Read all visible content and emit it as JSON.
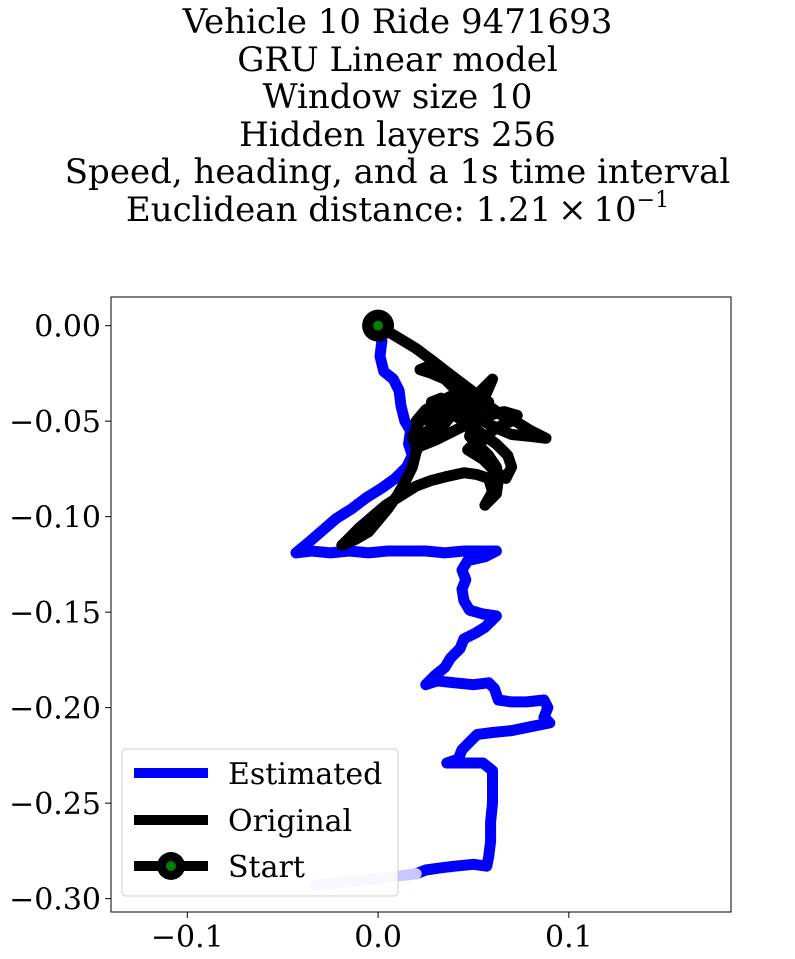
{
  "chart_data": {
    "type": "line",
    "title_lines": [
      "Vehicle 10 Ride 9471693",
      "GRU Linear model",
      "Window size 10",
      "Hidden layers 256",
      "Speed, heading, and a 1s time interval"
    ],
    "title_metric_prefix": "Euclidean distance: 1.21 × 10",
    "title_metric_exponent": "−1",
    "xlim": [
      -0.14,
      0.185
    ],
    "ylim": [
      -0.307,
      0.015
    ],
    "xticks": [
      -0.1,
      0.0,
      0.1
    ],
    "xtick_labels": [
      "−0.1",
      "0.0",
      "0.1"
    ],
    "yticks": [
      0.0,
      -0.05,
      -0.1,
      -0.15,
      -0.2,
      -0.25,
      -0.3
    ],
    "ytick_labels": [
      "0.00",
      "−0.05",
      "−0.10",
      "−0.15",
      "−0.20",
      "−0.25",
      "−0.30"
    ],
    "grid": false,
    "legend_position": "lower-left",
    "series": [
      {
        "name": "Estimated",
        "color": "#0000ff",
        "points": [
          [
            0.0,
            0.0
          ],
          [
            0.002,
            -0.008
          ],
          [
            0.001,
            -0.016
          ],
          [
            0.003,
            -0.024
          ],
          [
            0.008,
            -0.028
          ],
          [
            0.011,
            -0.034
          ],
          [
            0.012,
            -0.042
          ],
          [
            0.014,
            -0.05
          ],
          [
            0.017,
            -0.055
          ],
          [
            0.016,
            -0.062
          ],
          [
            0.018,
            -0.068
          ],
          [
            0.015,
            -0.074
          ],
          [
            0.009,
            -0.08
          ],
          [
            0.002,
            -0.085
          ],
          [
            -0.006,
            -0.09
          ],
          [
            -0.014,
            -0.096
          ],
          [
            -0.022,
            -0.101
          ],
          [
            -0.03,
            -0.108
          ],
          [
            -0.037,
            -0.114
          ],
          [
            -0.043,
            -0.119
          ],
          [
            -0.035,
            -0.118
          ],
          [
            -0.025,
            -0.119
          ],
          [
            -0.015,
            -0.118
          ],
          [
            -0.005,
            -0.119
          ],
          [
            0.005,
            -0.118
          ],
          [
            0.015,
            -0.118
          ],
          [
            0.025,
            -0.118
          ],
          [
            0.035,
            -0.119
          ],
          [
            0.045,
            -0.118
          ],
          [
            0.055,
            -0.118
          ],
          [
            0.062,
            -0.118
          ],
          [
            0.056,
            -0.121
          ],
          [
            0.047,
            -0.123
          ],
          [
            0.044,
            -0.128
          ],
          [
            0.046,
            -0.133
          ],
          [
            0.044,
            -0.138
          ],
          [
            0.045,
            -0.144
          ],
          [
            0.048,
            -0.149
          ],
          [
            0.055,
            -0.151
          ],
          [
            0.062,
            -0.152
          ],
          [
            0.056,
            -0.158
          ],
          [
            0.051,
            -0.161
          ],
          [
            0.045,
            -0.164
          ],
          [
            0.043,
            -0.169
          ],
          [
            0.038,
            -0.174
          ],
          [
            0.035,
            -0.179
          ],
          [
            0.03,
            -0.183
          ],
          [
            0.025,
            -0.188
          ],
          [
            0.031,
            -0.186
          ],
          [
            0.04,
            -0.187
          ],
          [
            0.05,
            -0.188
          ],
          [
            0.058,
            -0.187
          ],
          [
            0.061,
            -0.19
          ],
          [
            0.063,
            -0.196
          ],
          [
            0.07,
            -0.197
          ],
          [
            0.078,
            -0.197
          ],
          [
            0.087,
            -0.196
          ],
          [
            0.089,
            -0.2
          ],
          [
            0.087,
            -0.205
          ],
          [
            0.09,
            -0.208
          ],
          [
            0.08,
            -0.21
          ],
          [
            0.07,
            -0.212
          ],
          [
            0.06,
            -0.213
          ],
          [
            0.052,
            -0.214
          ],
          [
            0.048,
            -0.218
          ],
          [
            0.044,
            -0.222
          ],
          [
            0.042,
            -0.227
          ],
          [
            0.036,
            -0.229
          ],
          [
            0.045,
            -0.229
          ],
          [
            0.055,
            -0.229
          ],
          [
            0.06,
            -0.233
          ],
          [
            0.06,
            -0.24
          ],
          [
            0.06,
            -0.25
          ],
          [
            0.059,
            -0.26
          ],
          [
            0.059,
            -0.27
          ],
          [
            0.058,
            -0.278
          ],
          [
            0.057,
            -0.283
          ],
          [
            0.05,
            -0.282
          ],
          [
            0.04,
            -0.283
          ],
          [
            0.032,
            -0.284
          ],
          [
            0.025,
            -0.285
          ],
          [
            0.02,
            -0.287
          ],
          [
            0.012,
            -0.288
          ],
          [
            0.004,
            -0.289
          ],
          [
            -0.005,
            -0.29
          ],
          [
            -0.015,
            -0.291
          ],
          [
            -0.025,
            -0.292
          ],
          [
            -0.033,
            -0.293
          ]
        ]
      },
      {
        "name": "Original",
        "color": "#000000",
        "points": [
          [
            0.0,
            0.0
          ],
          [
            0.01,
            -0.006
          ],
          [
            0.02,
            -0.012
          ],
          [
            0.028,
            -0.018
          ],
          [
            0.037,
            -0.025
          ],
          [
            0.045,
            -0.031
          ],
          [
            0.053,
            -0.037
          ],
          [
            0.058,
            -0.04
          ],
          [
            0.05,
            -0.045
          ],
          [
            0.04,
            -0.046
          ],
          [
            0.03,
            -0.047
          ],
          [
            0.022,
            -0.05
          ],
          [
            0.018,
            -0.058
          ],
          [
            0.02,
            -0.064
          ],
          [
            0.03,
            -0.06
          ],
          [
            0.04,
            -0.055
          ],
          [
            0.05,
            -0.05
          ],
          [
            0.058,
            -0.047
          ],
          [
            0.066,
            -0.045
          ],
          [
            0.073,
            -0.047
          ],
          [
            0.07,
            -0.05
          ],
          [
            0.065,
            -0.052
          ],
          [
            0.06,
            -0.055
          ],
          [
            0.055,
            -0.06
          ],
          [
            0.05,
            -0.062
          ],
          [
            0.047,
            -0.065
          ],
          [
            0.055,
            -0.07
          ],
          [
            0.06,
            -0.075
          ],
          [
            0.067,
            -0.08
          ],
          [
            0.07,
            -0.074
          ],
          [
            0.068,
            -0.068
          ],
          [
            0.062,
            -0.062
          ],
          [
            0.055,
            -0.057
          ],
          [
            0.048,
            -0.052
          ],
          [
            0.04,
            -0.047
          ],
          [
            0.033,
            -0.044
          ],
          [
            0.028,
            -0.04
          ],
          [
            0.033,
            -0.038
          ],
          [
            0.04,
            -0.042
          ],
          [
            0.048,
            -0.047
          ],
          [
            0.055,
            -0.05
          ],
          [
            0.063,
            -0.054
          ],
          [
            0.07,
            -0.057
          ],
          [
            0.08,
            -0.058
          ],
          [
            0.088,
            -0.059
          ],
          [
            0.08,
            -0.055
          ],
          [
            0.072,
            -0.05
          ],
          [
            0.065,
            -0.047
          ],
          [
            0.058,
            -0.042
          ],
          [
            0.052,
            -0.037
          ],
          [
            0.045,
            -0.035
          ],
          [
            0.038,
            -0.037
          ],
          [
            0.032,
            -0.04
          ],
          [
            0.025,
            -0.044
          ],
          [
            0.02,
            -0.05
          ],
          [
            0.022,
            -0.057
          ],
          [
            0.028,
            -0.06
          ],
          [
            0.032,
            -0.055
          ],
          [
            0.036,
            -0.05
          ],
          [
            0.04,
            -0.045
          ],
          [
            0.045,
            -0.042
          ],
          [
            0.05,
            -0.038
          ],
          [
            0.055,
            -0.033
          ],
          [
            0.06,
            -0.028
          ],
          [
            0.057,
            -0.035
          ],
          [
            0.053,
            -0.042
          ],
          [
            0.05,
            -0.05
          ],
          [
            0.048,
            -0.058
          ],
          [
            0.053,
            -0.063
          ],
          [
            0.058,
            -0.068
          ],
          [
            0.062,
            -0.074
          ],
          [
            0.063,
            -0.081
          ],
          [
            0.062,
            -0.088
          ],
          [
            0.056,
            -0.094
          ],
          [
            0.06,
            -0.087
          ],
          [
            0.058,
            -0.08
          ],
          [
            0.052,
            -0.078
          ],
          [
            0.045,
            -0.077
          ],
          [
            0.036,
            -0.079
          ],
          [
            0.028,
            -0.081
          ],
          [
            0.02,
            -0.084
          ],
          [
            0.012,
            -0.089
          ],
          [
            0.004,
            -0.094
          ],
          [
            -0.003,
            -0.1
          ],
          [
            -0.01,
            -0.106
          ],
          [
            -0.016,
            -0.112
          ],
          [
            -0.019,
            -0.115
          ],
          [
            -0.012,
            -0.112
          ],
          [
            -0.005,
            -0.108
          ],
          [
            0.0,
            -0.102
          ],
          [
            0.005,
            -0.096
          ],
          [
            0.01,
            -0.089
          ],
          [
            0.014,
            -0.082
          ],
          [
            0.018,
            -0.074
          ],
          [
            0.02,
            -0.066
          ],
          [
            0.024,
            -0.058
          ],
          [
            0.03,
            -0.05
          ],
          [
            0.036,
            -0.044
          ],
          [
            0.04,
            -0.04
          ],
          [
            0.046,
            -0.036
          ],
          [
            0.042,
            -0.032
          ],
          [
            0.035,
            -0.028
          ],
          [
            0.028,
            -0.025
          ],
          [
            0.022,
            -0.023
          ],
          [
            0.027,
            -0.021
          ],
          [
            0.032,
            -0.025
          ],
          [
            0.037,
            -0.03
          ],
          [
            0.042,
            -0.035
          ],
          [
            0.047,
            -0.039
          ],
          [
            0.052,
            -0.043
          ]
        ]
      },
      {
        "name": "Start",
        "color": "#008000",
        "points": [
          [
            0.0,
            0.0
          ]
        ]
      }
    ]
  },
  "legend": {
    "items": [
      {
        "label": "Estimated",
        "color": "#0000ff"
      },
      {
        "label": "Original",
        "color": "#000000"
      },
      {
        "label": "Start",
        "color": "#000000",
        "marker_face": "#008000"
      }
    ]
  },
  "colors": {
    "estimated_tail": "#c8c8ff"
  }
}
